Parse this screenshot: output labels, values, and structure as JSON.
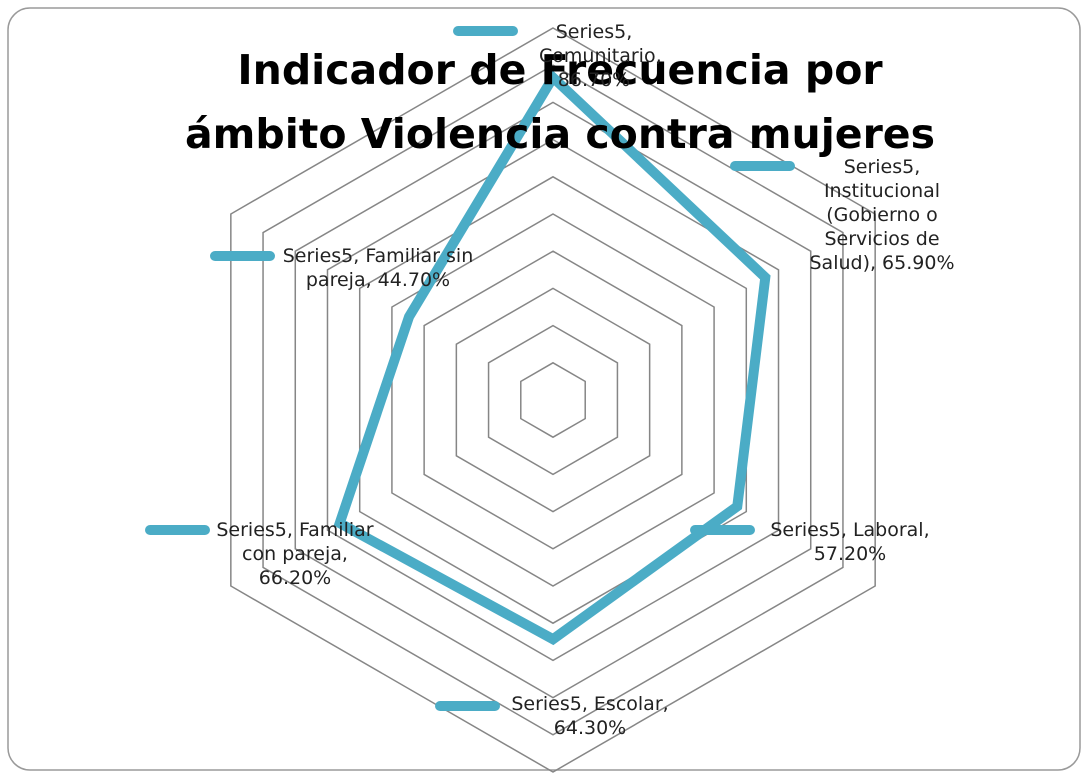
{
  "chart_data": {
    "type": "radar",
    "title": "Indicador de Frecuencia por ámbito Violencia contra mujeres",
    "categories": [
      "Comunitario",
      "Institucional (Gobierno o Servicios de Salud)",
      "Laboral",
      "Escolar",
      "Familiar con pareja",
      "Familiar sin pareja"
    ],
    "series": [
      {
        "name": "Series5",
        "color": "#4bacc6",
        "values": [
          86.7,
          65.9,
          57.2,
          64.3,
          66.2,
          44.7
        ],
        "value_labels": [
          "Series5, Comunitario, 86.70%",
          "Series5, Institucional (Gobierno o Servicios de Salud), 65.90%",
          "Series5, Laboral, 57.20%",
          "Series5, Escolar, 64.30%",
          "Series5, Familiar con pareja, 66.20%",
          "Series5, Familiar sin pareja, 44.70%"
        ]
      }
    ],
    "ylim": [
      0,
      100
    ],
    "yticks": [
      0,
      10,
      20,
      30,
      40,
      50,
      60,
      70,
      80,
      90,
      100
    ],
    "grid": true
  }
}
